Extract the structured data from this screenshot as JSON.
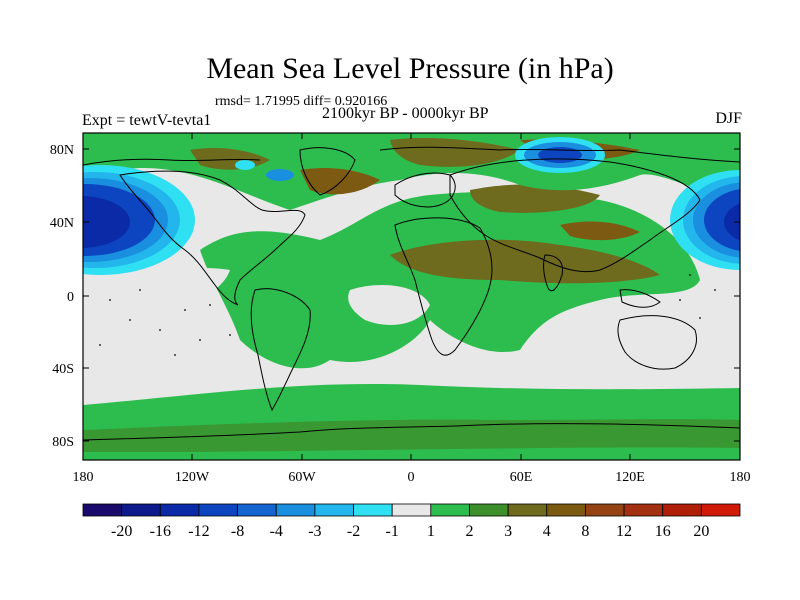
{
  "title": "Mean Sea Level Pressure (in hPa)",
  "stats": "rmsd= 1.71995 diff= 0.920166",
  "experiment": "Expt = tewtV-tevta1",
  "period": "2100kyr BP - 0000kyr BP",
  "season": "DJF",
  "lat_ticks": [
    "80N",
    "40N",
    "0",
    "40S",
    "80S"
  ],
  "lon_ticks": [
    "180",
    "120W",
    "60W",
    "0",
    "60E",
    "120E",
    "180"
  ],
  "colorbar": {
    "labels": [
      "-20",
      "-16",
      "-12",
      "-8",
      "-4",
      "-3",
      "-2",
      "-1",
      "1",
      "2",
      "3",
      "4",
      "8",
      "12",
      "16",
      "20"
    ],
    "colors": [
      "#1a0a6b",
      "#0d1a8c",
      "#0a2aa8",
      "#0c45bf",
      "#1565d0",
      "#1a8fe0",
      "#22b6ec",
      "#2ee0f2",
      "#e8e8e8",
      "#2dbd4e",
      "#3d8f2c",
      "#6e6a1e",
      "#7d5a12",
      "#934412",
      "#a33010",
      "#b01f0a",
      "#d21a0a"
    ]
  },
  "palette": {
    "neutral": "#e8e8e8",
    "green": "#2dbd4e",
    "olive": "#6e6a1e",
    "brown": "#7d5a12",
    "deep_blue": "#0c45bf",
    "mid_blue": "#1a8fe0",
    "light_blue": "#2ee0f2"
  }
}
